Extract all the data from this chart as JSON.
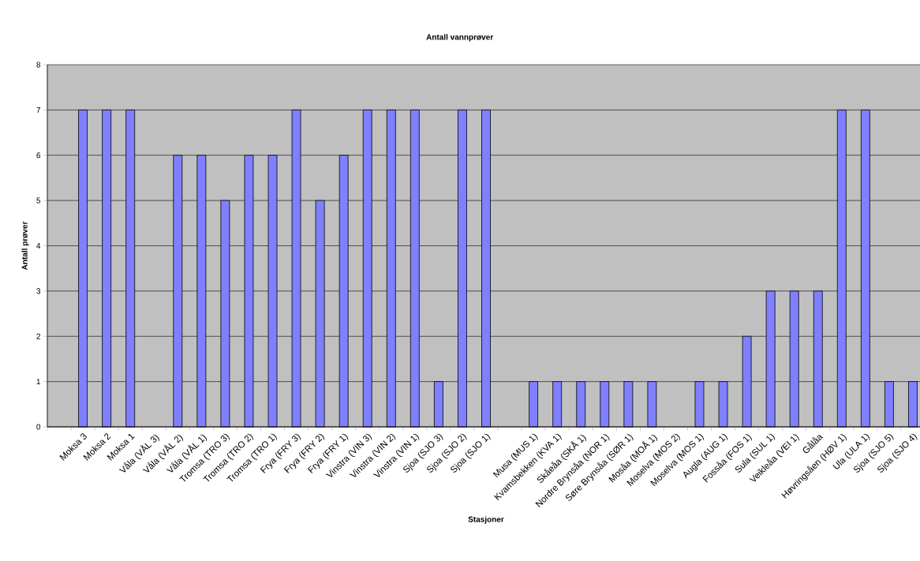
{
  "chart_data": {
    "type": "bar",
    "title": "Antall vannprøver",
    "xlabel": "Stasjoner",
    "ylabel": "Antall prøver",
    "categories": [
      null,
      "Moksa 3",
      "Moksa 2",
      "Moksa 1",
      "Våla (VÅL 3)",
      "Våla (VÅL 2)",
      "Våla (VÅL 1)",
      "Tromsa (TRO 3)",
      "Tromsa (TRO 2)",
      "Tromsa (TRO 1)",
      "Frya (FRY 3)",
      "Frya (FRY 2)",
      "Frya (FRY 1)",
      "Vinstra (VIN 3)",
      "Vinstra (VIN 2)",
      "Vinstra (VIN 1)",
      "Sjoa (SJO 3)",
      "Sjoa (SJO 2)",
      "Sjoa (SJO 1)",
      null,
      "Musa (MUS 1)",
      "Kvamsbekken (KVA 1)",
      "Skåeåa (SKÅ 1)",
      "Nordre Brynsåa (NOR 1)",
      "Søre Brynsåa (SØR 1)",
      "Mosåa (MOÅ 1)",
      "Moselva (MOS 2)",
      "Moselva (MOS 1)",
      "Augla (AUG 1)",
      "Fossåa (FOS 1)",
      "Sula (SUL 1)",
      "Veikleåa (VEI 1)",
      "Gålåa",
      "Høvringsåen (HØV 1)",
      "Ula (ULA 1)",
      "Sjoa (SJO 5)",
      "Sjoa (SJO 4)"
    ],
    "values": [
      null,
      7,
      7,
      7,
      null,
      6,
      6,
      5,
      6,
      6,
      7,
      5,
      6,
      7,
      7,
      7,
      1,
      7,
      7,
      null,
      1,
      1,
      1,
      1,
      1,
      1,
      null,
      1,
      1,
      2,
      3,
      3,
      3,
      7,
      7,
      1,
      1
    ],
    "color": "#8080ff",
    "ylim": [
      0,
      8
    ],
    "yticks": [
      0,
      1,
      2,
      3,
      4,
      5,
      6,
      7,
      8
    ],
    "grid": "y"
  }
}
